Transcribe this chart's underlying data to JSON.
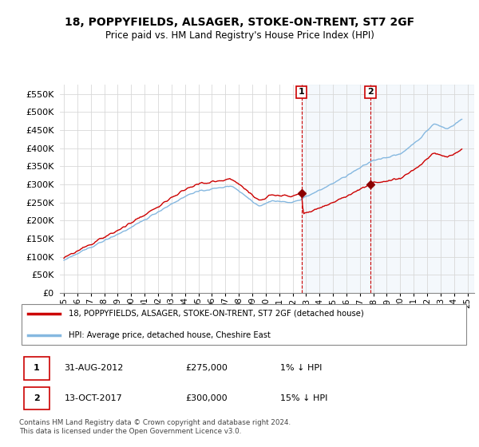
{
  "title": "18, POPPYFIELDS, ALSAGER, STOKE-ON-TRENT, ST7 2GF",
  "subtitle": "Price paid vs. HM Land Registry's House Price Index (HPI)",
  "legend_line1": "18, POPPYFIELDS, ALSAGER, STOKE-ON-TRENT, ST7 2GF (detached house)",
  "legend_line2": "HPI: Average price, detached house, Cheshire East",
  "annotation1_date": "31-AUG-2012",
  "annotation1_price": "£275,000",
  "annotation1_hpi": "1% ↓ HPI",
  "annotation2_date": "13-OCT-2017",
  "annotation2_price": "£300,000",
  "annotation2_hpi": "15% ↓ HPI",
  "footer": "Contains HM Land Registry data © Crown copyright and database right 2024.\nThis data is licensed under the Open Government Licence v3.0.",
  "ylim": [
    0,
    575000
  ],
  "yticks": [
    0,
    50000,
    100000,
    150000,
    200000,
    250000,
    300000,
    350000,
    400000,
    450000,
    500000,
    550000
  ],
  "background_color": "#ffffff",
  "grid_color": "#d8d8d8",
  "hpi_color": "#85b8e0",
  "price_color": "#cc0000",
  "sale1_year": 2012.67,
  "sale1_value": 275000,
  "sale2_year": 2017.78,
  "sale2_value": 300000,
  "xlim_start": 1994.7,
  "xlim_end": 2025.5
}
